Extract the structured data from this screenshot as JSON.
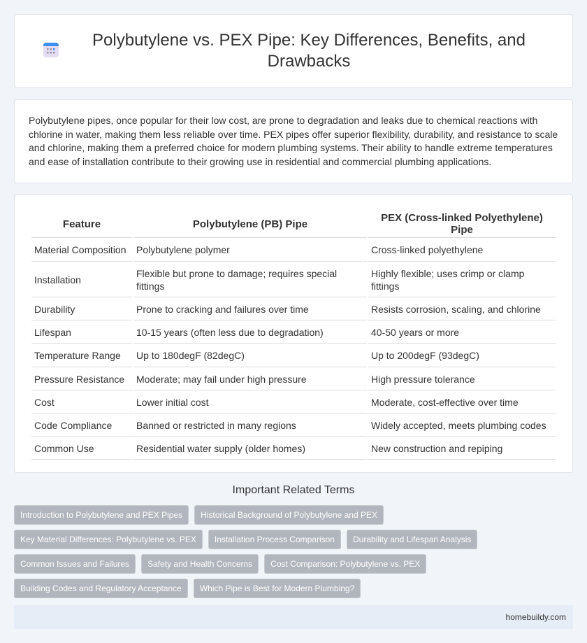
{
  "header": {
    "title": "Polybutylene vs. PEX Pipe: Key Differences, Benefits, and Drawbacks",
    "icon": "calendar-icon"
  },
  "intro": "Polybutylene pipes, once popular for their low cost, are prone to degradation and leaks due to chemical reactions with chlorine in water, making them less reliable over time. PEX pipes offer superior flexibility, durability, and resistance to scale and chlorine, making them a preferred choice for modern plumbing systems. Their ability to handle extreme temperatures and ease of installation contribute to their growing use in residential and commercial plumbing applications.",
  "table": {
    "headers": [
      "Feature",
      "Polybutylene (PB) Pipe",
      "PEX (Cross-linked Polyethylene) Pipe"
    ],
    "rows": [
      [
        "Material Composition",
        "Polybutylene polymer",
        "Cross-linked polyethylene"
      ],
      [
        "Installation",
        "Flexible but prone to damage; requires special fittings",
        "Highly flexible; uses crimp or clamp fittings"
      ],
      [
        "Durability",
        "Prone to cracking and failures over time",
        "Resists corrosion, scaling, and chlorine"
      ],
      [
        "Lifespan",
        "10-15 years (often less due to degradation)",
        "40-50 years or more"
      ],
      [
        "Temperature Range",
        "Up to 180degF (82degC)",
        "Up to 200degF (93degC)"
      ],
      [
        "Pressure Resistance",
        "Moderate; may fail under high pressure",
        "High pressure tolerance"
      ],
      [
        "Cost",
        "Lower initial cost",
        "Moderate, cost-effective over time"
      ],
      [
        "Code Compliance",
        "Banned or restricted in many regions",
        "Widely accepted, meets plumbing codes"
      ],
      [
        "Common Use",
        "Residential water supply (older homes)",
        "New construction and repiping"
      ]
    ]
  },
  "related": {
    "title": "Important Related Terms",
    "tags": [
      "Introduction to Polybutylene and PEX Pipes",
      "Historical Background of Polybutylene and PEX",
      "Key Material Differences: Polybutylene vs. PEX",
      "Installation Process Comparison",
      "Durability and Lifespan Analysis",
      "Common Issues and Failures",
      "Safety and Health Concerns",
      "Cost Comparison: Polybutylene vs. PEX",
      "Building Codes and Regulatory Acceptance",
      "Which Pipe is Best for Modern Plumbing?"
    ]
  },
  "footer": {
    "site": "homebuildy.com"
  }
}
